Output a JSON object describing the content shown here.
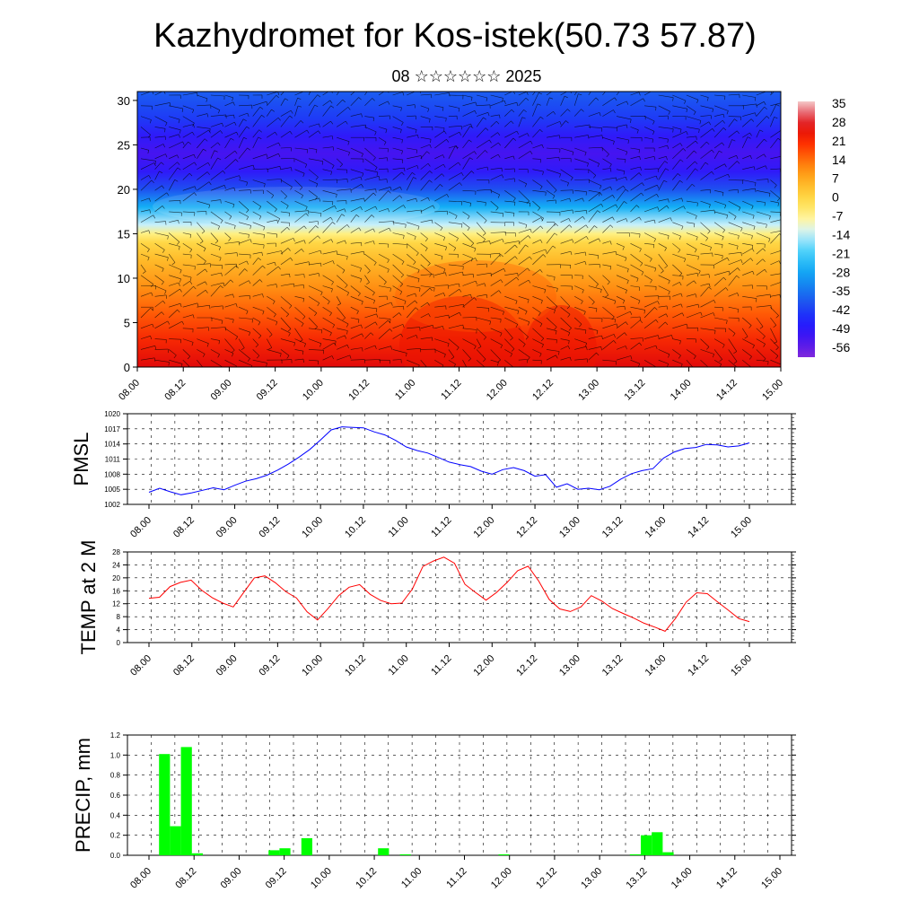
{
  "header": {
    "title": "Kazhydromet for Kos-istek(50.73 57.87)",
    "subtitle": "08 ☆☆☆☆☆☆ 2025"
  },
  "colors": {
    "pmsl_line": "#0000ff",
    "temp_line": "#ff0000",
    "precip_bar": "#00ff00",
    "background": "#ffffff"
  },
  "chart_data": [
    {
      "type": "heatmap",
      "title": "",
      "xlabel": "",
      "ylabel": "",
      "x_ticks": [
        "08.00",
        "08.12",
        "09.00",
        "09.12",
        "10.00",
        "10.12",
        "11.00",
        "11.12",
        "12.00",
        "12.12",
        "13.00",
        "13.12",
        "14.00",
        "14.12",
        "15.00"
      ],
      "y_ticks": [
        0,
        5,
        10,
        15,
        20,
        25,
        30
      ],
      "ylim": [
        0,
        31
      ],
      "colorbar_labels": [
        "35",
        "28",
        "21",
        "14",
        "7",
        "0",
        "-7",
        "-14",
        "-21",
        "-28",
        "-35",
        "-42",
        "-49",
        "-56"
      ],
      "colorbar_range": [
        -63,
        38
      ],
      "overlay": "wind barbs",
      "temperature_profile": {
        "levels": [
          0,
          3,
          6,
          9,
          12,
          14,
          15,
          16,
          18,
          20,
          22,
          24,
          26,
          28,
          31
        ],
        "values": [
          28,
          23,
          17,
          11,
          5,
          0,
          -7,
          -14,
          -28,
          -42,
          -52,
          -56,
          -52,
          -45,
          -40
        ]
      }
    },
    {
      "type": "line",
      "ylabel": "PMSL",
      "x_ticks": [
        "08.00",
        "08.12",
        "09.00",
        "09.12",
        "10.00",
        "10.12",
        "11.00",
        "11.12",
        "12.00",
        "12.12",
        "13.00",
        "13.12",
        "14.00",
        "14.12",
        "15.00"
      ],
      "y_ticks": [
        1002,
        1005,
        1008,
        1011,
        1014,
        1017,
        1020
      ],
      "ylim": [
        1002,
        1020
      ],
      "series": [
        {
          "values": [
            1004.4,
            1005.2,
            1004.5,
            1003.9,
            1004.3,
            1004.8,
            1005.3,
            1004.9,
            1005.8,
            1006.6,
            1007.1,
            1007.8,
            1008.8,
            1010.0,
            1011.4,
            1012.9,
            1014.8,
            1016.8,
            1017.4,
            1017.3,
            1017.2,
            1016.4,
            1015.8,
            1014.7,
            1013.4,
            1012.7,
            1012.2,
            1011.3,
            1010.4,
            1009.9,
            1009.5,
            1008.6,
            1008.0,
            1008.9,
            1009.3,
            1008.7,
            1007.6,
            1007.9,
            1005.4,
            1006.1,
            1005.0,
            1005.2,
            1004.9,
            1005.6,
            1007.0,
            1008.1,
            1008.7,
            1009.1,
            1011.2,
            1012.4,
            1013.1,
            1013.3,
            1013.9,
            1013.8,
            1013.4,
            1013.6,
            1014.2
          ]
        }
      ]
    },
    {
      "type": "line",
      "ylabel": "TEMP at 2 M",
      "x_ticks": [
        "08.00",
        "08.12",
        "09.00",
        "09.12",
        "10.00",
        "10.12",
        "11.00",
        "11.12",
        "12.00",
        "12.12",
        "13.00",
        "13.12",
        "14.00",
        "14.12",
        "15.00"
      ],
      "y_ticks": [
        0,
        4,
        8,
        12,
        16,
        20,
        24,
        28
      ],
      "ylim": [
        0,
        28
      ],
      "series": [
        {
          "values": [
            13.7,
            14.0,
            17.3,
            18.6,
            19.3,
            16.2,
            13.9,
            12.2,
            11.0,
            15.5,
            20.0,
            20.6,
            18.5,
            15.7,
            13.8,
            9.5,
            7.0,
            10.5,
            14.5,
            17.1,
            17.9,
            14.9,
            13.0,
            12.0,
            12.2,
            16.5,
            23.5,
            25.2,
            26.4,
            24.5,
            18.0,
            15.5,
            13.1,
            15.5,
            18.6,
            22.2,
            23.6,
            19.0,
            13.3,
            10.4,
            9.6,
            11.0,
            14.5,
            12.8,
            10.5,
            9.0,
            7.6,
            6.0,
            4.8,
            3.5,
            7.5,
            12.5,
            15.4,
            15.1,
            12.5,
            10.0,
            7.4,
            6.5
          ]
        }
      ]
    },
    {
      "type": "bar",
      "ylabel": "PRECIP, mm",
      "x_ticks": [
        "08.00",
        "08.12",
        "09.00",
        "09.12",
        "10.00",
        "10.12",
        "11.00",
        "11.12",
        "12.00",
        "12.12",
        "13.00",
        "13.12",
        "14.00",
        "14.12",
        "15.00"
      ],
      "y_ticks": [
        "0.0",
        "0.2",
        "0.4",
        "0.6",
        "0.8",
        "1.0",
        "1.2"
      ],
      "ylim": [
        0,
        1.2
      ],
      "values": [
        0.0,
        1.01,
        0.29,
        1.08,
        0.02,
        0.0,
        0.0,
        0.0,
        0.0,
        0.0,
        0.0,
        0.05,
        0.07,
        0.0,
        0.17,
        0.0,
        0.0,
        0.0,
        0.0,
        0.0,
        0.0,
        0.07,
        0.0,
        0.01,
        0.0,
        0.0,
        0.0,
        0.0,
        0.0,
        0.0,
        0.0,
        0.0,
        0.01,
        0.0,
        0.0,
        0.0,
        0.0,
        0.0,
        0.0,
        0.0,
        0.0,
        0.0,
        0.0,
        0.0,
        0.01,
        0.2,
        0.23,
        0.03,
        0.0,
        0.0,
        0.0,
        0.0,
        0.0,
        0.0,
        0.0,
        0.0,
        0.0,
        0.0,
        0.0
      ]
    }
  ]
}
